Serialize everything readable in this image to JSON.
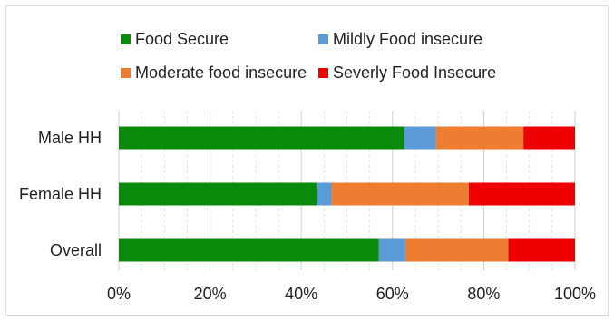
{
  "chart_data": {
    "type": "bar",
    "orientation": "horizontal",
    "stacked": "percent",
    "categories": [
      "Male HH",
      "Female HH",
      "Overall"
    ],
    "series": [
      {
        "name": "Food Secure",
        "color": "#0a8a0a",
        "values": [
          62.6,
          43.4,
          57.0
        ]
      },
      {
        "name": "Mildly Food insecure",
        "color": "#5b9bd5",
        "values": [
          6.9,
          3.3,
          5.8
        ]
      },
      {
        "name": "Moderate food insecure",
        "color": "#ed7d31",
        "values": [
          19.2,
          30.0,
          22.6
        ]
      },
      {
        "name": "Severly Food Insecure",
        "color": "#ee0000",
        "values": [
          11.3,
          23.3,
          14.6
        ]
      }
    ],
    "xlim": [
      0,
      100
    ],
    "x_ticks": [
      "0%",
      "20%",
      "40%",
      "60%",
      "80%",
      "100%"
    ],
    "grid": "vertical minor dashed",
    "legend_position": "top"
  }
}
